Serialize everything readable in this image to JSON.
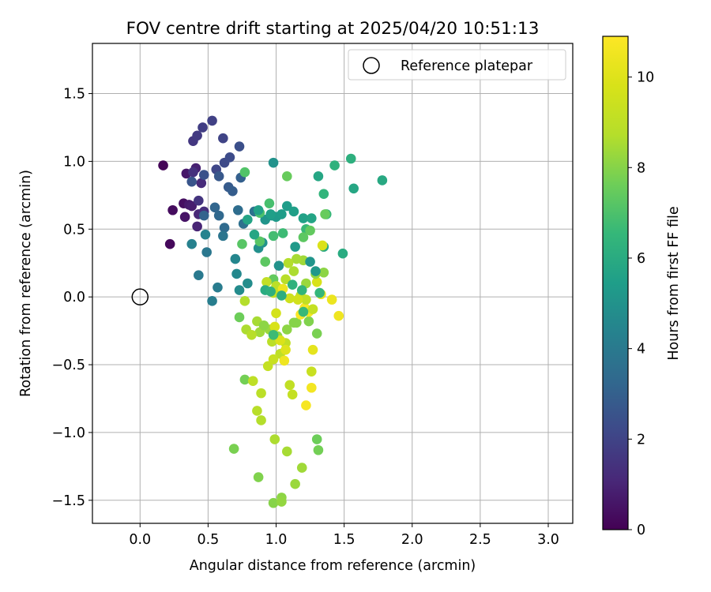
{
  "chart_data": {
    "type": "scatter",
    "title": "FOV centre drift starting at 2025/04/20 10:51:13",
    "xlabel": "Angular distance from reference (arcmin)",
    "ylabel": "Rotation from reference (arcmin)",
    "xlim": [
      -0.35,
      3.18
    ],
    "ylim": [
      -1.67,
      1.87
    ],
    "xticks": [
      0.0,
      0.5,
      1.0,
      1.5,
      2.0,
      2.5,
      3.0
    ],
    "xtick_labels": [
      "0.0",
      "0.5",
      "1.0",
      "1.5",
      "2.0",
      "2.5",
      "3.0"
    ],
    "yticks": [
      -1.5,
      -1.0,
      -0.5,
      0.0,
      0.5,
      1.0,
      1.5
    ],
    "ytick_labels": [
      "−1.5",
      "−1.0",
      "−0.5",
      "0.0",
      "0.5",
      "1.0",
      "1.5"
    ],
    "grid": true,
    "legend": {
      "position": "upper-right",
      "entries": [
        {
          "label": "Reference platepar",
          "marker": "open-circle"
        }
      ]
    },
    "reference_point": {
      "x": 0.0,
      "y": 0.0
    },
    "colorbar": {
      "label": "Hours from first FF file",
      "colormap": "viridis",
      "range": [
        0,
        10.9
      ],
      "ticks": [
        0,
        2,
        4,
        6,
        8,
        10
      ],
      "tick_labels": [
        "0",
        "2",
        "4",
        "6",
        "8",
        "10"
      ]
    },
    "points": [
      [
        0.17,
        0.97,
        0.1
      ],
      [
        0.22,
        0.39,
        0.2
      ],
      [
        0.24,
        0.64,
        0.3
      ],
      [
        0.32,
        0.69,
        0.4
      ],
      [
        0.33,
        0.59,
        0.5
      ],
      [
        0.34,
        0.91,
        0.6
      ],
      [
        0.36,
        0.68,
        0.7
      ],
      [
        0.38,
        0.67,
        0.8
      ],
      [
        0.41,
        0.95,
        0.9
      ],
      [
        0.42,
        0.52,
        1.0
      ],
      [
        0.43,
        0.61,
        1.1
      ],
      [
        0.45,
        0.84,
        1.2
      ],
      [
        0.47,
        0.63,
        1.3
      ],
      [
        0.39,
        0.92,
        1.4
      ],
      [
        0.43,
        0.71,
        1.5
      ],
      [
        0.39,
        1.15,
        1.6
      ],
      [
        0.42,
        1.19,
        1.7
      ],
      [
        0.46,
        1.25,
        1.8
      ],
      [
        0.53,
        1.3,
        1.9
      ],
      [
        0.61,
        1.17,
        2.0
      ],
      [
        0.56,
        0.94,
        2.1
      ],
      [
        0.62,
        0.99,
        2.2
      ],
      [
        0.66,
        1.03,
        2.3
      ],
      [
        0.73,
        1.11,
        2.4
      ],
      [
        0.47,
        0.9,
        2.5
      ],
      [
        0.38,
        0.85,
        2.6
      ],
      [
        0.58,
        0.89,
        2.7
      ],
      [
        0.65,
        0.81,
        2.8
      ],
      [
        0.68,
        0.78,
        2.9
      ],
      [
        0.74,
        0.88,
        3.0
      ],
      [
        0.47,
        0.6,
        3.1
      ],
      [
        0.55,
        0.66,
        3.2
      ],
      [
        0.58,
        0.6,
        3.3
      ],
      [
        0.62,
        0.51,
        3.4
      ],
      [
        0.72,
        0.64,
        3.5
      ],
      [
        0.76,
        0.54,
        3.6
      ],
      [
        0.84,
        0.63,
        3.7
      ],
      [
        0.61,
        0.45,
        3.8
      ],
      [
        0.49,
        0.33,
        3.9
      ],
      [
        0.43,
        0.16,
        4.0
      ],
      [
        0.57,
        0.07,
        4.1
      ],
      [
        0.53,
        -0.03,
        4.2
      ],
      [
        0.38,
        0.39,
        4.3
      ],
      [
        0.48,
        0.46,
        4.4
      ],
      [
        0.7,
        0.28,
        4.5
      ],
      [
        0.71,
        0.17,
        4.6
      ],
      [
        0.73,
        0.05,
        4.7
      ],
      [
        0.79,
        0.1,
        4.8
      ],
      [
        0.87,
        0.36,
        4.9
      ],
      [
        0.9,
        0.4,
        5.0
      ],
      [
        0.92,
        0.57,
        5.1
      ],
      [
        0.97,
        0.6,
        5.2
      ],
      [
        1.0,
        0.59,
        5.3
      ],
      [
        1.08,
        0.67,
        5.4
      ],
      [
        1.13,
        0.63,
        5.5
      ],
      [
        1.2,
        0.58,
        5.6
      ],
      [
        1.26,
        0.58,
        5.7
      ],
      [
        1.31,
        0.89,
        5.8
      ],
      [
        1.35,
        0.37,
        5.9
      ],
      [
        1.49,
        0.32,
        6.0
      ],
      [
        0.98,
        0.99,
        5.0
      ],
      [
        1.57,
        0.8,
        5.8
      ],
      [
        1.78,
        0.86,
        5.9
      ],
      [
        1.55,
        1.02,
        6.2
      ],
      [
        1.43,
        0.97,
        6.3
      ],
      [
        1.35,
        0.76,
        6.4
      ],
      [
        1.37,
        0.61,
        6.5
      ],
      [
        1.22,
        0.5,
        6.6
      ],
      [
        1.05,
        0.47,
        6.7
      ],
      [
        0.98,
        0.45,
        6.8
      ],
      [
        0.95,
        0.69,
        6.9
      ],
      [
        0.88,
        0.62,
        7.0
      ],
      [
        0.77,
        0.92,
        7.1
      ],
      [
        0.75,
        0.39,
        7.2
      ],
      [
        0.92,
        0.26,
        7.3
      ],
      [
        0.98,
        0.13,
        7.4
      ],
      [
        1.08,
        0.89,
        7.5
      ],
      [
        0.73,
        -0.15,
        7.6
      ],
      [
        0.77,
        -0.61,
        7.7
      ],
      [
        0.69,
        -1.12,
        7.8
      ],
      [
        0.87,
        -1.33,
        7.9
      ],
      [
        0.98,
        -1.52,
        8.0
      ],
      [
        1.04,
        -1.48,
        8.1
      ],
      [
        1.04,
        -1.51,
        8.2
      ],
      [
        1.14,
        -1.38,
        8.3
      ],
      [
        1.19,
        -1.26,
        8.4
      ],
      [
        1.08,
        -1.14,
        8.5
      ],
      [
        0.99,
        -1.05,
        8.6
      ],
      [
        0.89,
        -0.91,
        8.7
      ],
      [
        0.86,
        -0.84,
        8.8
      ],
      [
        0.89,
        -0.71,
        8.9
      ],
      [
        0.83,
        -0.62,
        9.0
      ],
      [
        1.1,
        -0.65,
        9.1
      ],
      [
        1.12,
        -0.72,
        9.2
      ],
      [
        1.26,
        -0.55,
        9.3
      ],
      [
        1.3,
        -1.05,
        7.6
      ],
      [
        1.31,
        -1.13,
        7.7
      ],
      [
        1.3,
        -0.27,
        7.8
      ],
      [
        1.24,
        -0.18,
        7.9
      ],
      [
        1.15,
        -0.19,
        8.0
      ],
      [
        1.08,
        -0.24,
        8.1
      ],
      [
        1.01,
        -0.29,
        8.2
      ],
      [
        0.95,
        -0.24,
        8.3
      ],
      [
        0.88,
        -0.26,
        8.4
      ],
      [
        0.86,
        -0.18,
        8.5
      ],
      [
        0.78,
        -0.24,
        8.6
      ],
      [
        0.77,
        -0.03,
        8.7
      ],
      [
        0.82,
        -0.28,
        8.8
      ],
      [
        0.97,
        -0.33,
        8.9
      ],
      [
        1.03,
        -0.42,
        9.0
      ],
      [
        1.07,
        -0.34,
        9.1
      ],
      [
        0.94,
        -0.51,
        9.2
      ],
      [
        0.98,
        -0.46,
        9.3
      ],
      [
        1.06,
        -0.47,
        10.5
      ],
      [
        1.26,
        -0.67,
        10.6
      ],
      [
        1.22,
        -0.8,
        10.7
      ],
      [
        1.27,
        -0.39,
        10.2
      ],
      [
        1.33,
        0.02,
        10.3
      ],
      [
        1.41,
        -0.02,
        10.4
      ],
      [
        1.46,
        -0.14,
        10.5
      ],
      [
        1.24,
        -0.11,
        10.6
      ],
      [
        1.21,
        -0.08,
        10.7
      ],
      [
        1.18,
        -0.13,
        10.8
      ],
      [
        1.3,
        0.11,
        9.8
      ],
      [
        1.34,
        0.38,
        9.9
      ],
      [
        1.35,
        0.18,
        8.1
      ],
      [
        1.29,
        0.17,
        8.2
      ],
      [
        1.22,
        0.1,
        8.3
      ],
      [
        1.2,
        0.27,
        8.4
      ],
      [
        1.15,
        0.28,
        8.5
      ],
      [
        1.13,
        0.19,
        8.6
      ],
      [
        1.09,
        0.25,
        8.7
      ],
      [
        1.07,
        0.13,
        8.8
      ],
      [
        1.0,
        0.08,
        8.9
      ],
      [
        0.98,
        0.03,
        9.0
      ],
      [
        0.93,
        0.11,
        9.1
      ],
      [
        0.88,
        0.41,
        7.2
      ],
      [
        1.2,
        0.44,
        7.3
      ],
      [
        1.25,
        0.49,
        7.4
      ],
      [
        1.36,
        0.61,
        7.5
      ],
      [
        1.18,
        0.01,
        9.0
      ],
      [
        1.22,
        -0.02,
        9.1
      ],
      [
        1.27,
        -0.09,
        9.2
      ],
      [
        1.04,
        0.05,
        9.3
      ],
      [
        1.05,
        0.06,
        10.4
      ],
      [
        1.1,
        -0.01,
        9.5
      ],
      [
        1.16,
        -0.02,
        9.6
      ],
      [
        1.0,
        -0.12,
        9.7
      ],
      [
        0.99,
        -0.22,
        9.8
      ],
      [
        1.03,
        -0.32,
        9.9
      ],
      [
        1.07,
        -0.39,
        10.0
      ],
      [
        1.13,
        -0.19,
        8.0
      ],
      [
        0.91,
        -0.21,
        8.1
      ],
      [
        1.02,
        0.23,
        5.0
      ],
      [
        1.25,
        0.26,
        5.1
      ],
      [
        1.29,
        0.19,
        5.2
      ],
      [
        1.14,
        0.37,
        5.3
      ],
      [
        1.04,
        0.61,
        5.4
      ],
      [
        0.96,
        0.61,
        5.5
      ],
      [
        0.87,
        0.64,
        5.6
      ],
      [
        0.79,
        0.57,
        5.7
      ],
      [
        0.84,
        0.46,
        5.8
      ],
      [
        0.92,
        0.05,
        6.0
      ],
      [
        1.04,
        0.01,
        6.1
      ],
      [
        0.96,
        0.04,
        6.2
      ],
      [
        1.12,
        0.09,
        6.3
      ],
      [
        1.19,
        0.05,
        6.4
      ],
      [
        1.32,
        0.03,
        6.5
      ],
      [
        1.2,
        -0.11,
        6.6
      ],
      [
        0.98,
        -0.28,
        6.7
      ]
    ]
  }
}
